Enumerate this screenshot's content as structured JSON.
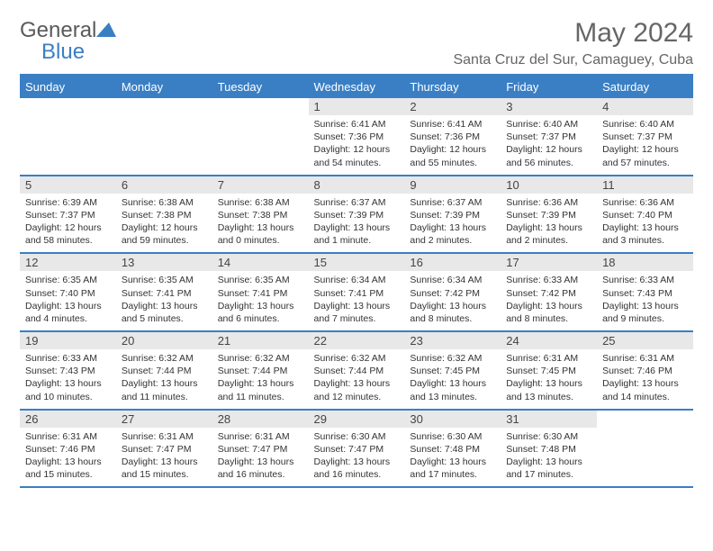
{
  "logo": {
    "text1": "General",
    "text2": "Blue"
  },
  "title": "May 2024",
  "location": "Santa Cruz del Sur, Camaguey, Cuba",
  "colors": {
    "accent": "#3a7fc4",
    "header_text": "#666",
    "grey_row": "#e8e8e8"
  },
  "weekdays": [
    "Sunday",
    "Monday",
    "Tuesday",
    "Wednesday",
    "Thursday",
    "Friday",
    "Saturday"
  ],
  "weeks": [
    [
      null,
      null,
      null,
      {
        "n": "1",
        "sr": "6:41 AM",
        "ss": "7:36 PM",
        "dl": "12 hours and 54 minutes."
      },
      {
        "n": "2",
        "sr": "6:41 AM",
        "ss": "7:36 PM",
        "dl": "12 hours and 55 minutes."
      },
      {
        "n": "3",
        "sr": "6:40 AM",
        "ss": "7:37 PM",
        "dl": "12 hours and 56 minutes."
      },
      {
        "n": "4",
        "sr": "6:40 AM",
        "ss": "7:37 PM",
        "dl": "12 hours and 57 minutes."
      }
    ],
    [
      {
        "n": "5",
        "sr": "6:39 AM",
        "ss": "7:37 PM",
        "dl": "12 hours and 58 minutes."
      },
      {
        "n": "6",
        "sr": "6:38 AM",
        "ss": "7:38 PM",
        "dl": "12 hours and 59 minutes."
      },
      {
        "n": "7",
        "sr": "6:38 AM",
        "ss": "7:38 PM",
        "dl": "13 hours and 0 minutes."
      },
      {
        "n": "8",
        "sr": "6:37 AM",
        "ss": "7:39 PM",
        "dl": "13 hours and 1 minute."
      },
      {
        "n": "9",
        "sr": "6:37 AM",
        "ss": "7:39 PM",
        "dl": "13 hours and 2 minutes."
      },
      {
        "n": "10",
        "sr": "6:36 AM",
        "ss": "7:39 PM",
        "dl": "13 hours and 2 minutes."
      },
      {
        "n": "11",
        "sr": "6:36 AM",
        "ss": "7:40 PM",
        "dl": "13 hours and 3 minutes."
      }
    ],
    [
      {
        "n": "12",
        "sr": "6:35 AM",
        "ss": "7:40 PM",
        "dl": "13 hours and 4 minutes."
      },
      {
        "n": "13",
        "sr": "6:35 AM",
        "ss": "7:41 PM",
        "dl": "13 hours and 5 minutes."
      },
      {
        "n": "14",
        "sr": "6:35 AM",
        "ss": "7:41 PM",
        "dl": "13 hours and 6 minutes."
      },
      {
        "n": "15",
        "sr": "6:34 AM",
        "ss": "7:41 PM",
        "dl": "13 hours and 7 minutes."
      },
      {
        "n": "16",
        "sr": "6:34 AM",
        "ss": "7:42 PM",
        "dl": "13 hours and 8 minutes."
      },
      {
        "n": "17",
        "sr": "6:33 AM",
        "ss": "7:42 PM",
        "dl": "13 hours and 8 minutes."
      },
      {
        "n": "18",
        "sr": "6:33 AM",
        "ss": "7:43 PM",
        "dl": "13 hours and 9 minutes."
      }
    ],
    [
      {
        "n": "19",
        "sr": "6:33 AM",
        "ss": "7:43 PM",
        "dl": "13 hours and 10 minutes."
      },
      {
        "n": "20",
        "sr": "6:32 AM",
        "ss": "7:44 PM",
        "dl": "13 hours and 11 minutes."
      },
      {
        "n": "21",
        "sr": "6:32 AM",
        "ss": "7:44 PM",
        "dl": "13 hours and 11 minutes."
      },
      {
        "n": "22",
        "sr": "6:32 AM",
        "ss": "7:44 PM",
        "dl": "13 hours and 12 minutes."
      },
      {
        "n": "23",
        "sr": "6:32 AM",
        "ss": "7:45 PM",
        "dl": "13 hours and 13 minutes."
      },
      {
        "n": "24",
        "sr": "6:31 AM",
        "ss": "7:45 PM",
        "dl": "13 hours and 13 minutes."
      },
      {
        "n": "25",
        "sr": "6:31 AM",
        "ss": "7:46 PM",
        "dl": "13 hours and 14 minutes."
      }
    ],
    [
      {
        "n": "26",
        "sr": "6:31 AM",
        "ss": "7:46 PM",
        "dl": "13 hours and 15 minutes."
      },
      {
        "n": "27",
        "sr": "6:31 AM",
        "ss": "7:47 PM",
        "dl": "13 hours and 15 minutes."
      },
      {
        "n": "28",
        "sr": "6:31 AM",
        "ss": "7:47 PM",
        "dl": "13 hours and 16 minutes."
      },
      {
        "n": "29",
        "sr": "6:30 AM",
        "ss": "7:47 PM",
        "dl": "13 hours and 16 minutes."
      },
      {
        "n": "30",
        "sr": "6:30 AM",
        "ss": "7:48 PM",
        "dl": "13 hours and 17 minutes."
      },
      {
        "n": "31",
        "sr": "6:30 AM",
        "ss": "7:48 PM",
        "dl": "13 hours and 17 minutes."
      },
      null
    ]
  ],
  "labels": {
    "sunrise": "Sunrise:",
    "sunset": "Sunset:",
    "daylight": "Daylight:"
  }
}
